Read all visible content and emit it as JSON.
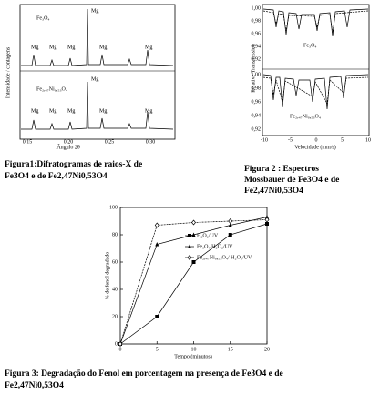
{
  "figure1": {
    "sample_labels": [
      "Fe₃O₄",
      "Fe₂,₄₇Ni₀,₅₃O₄"
    ],
    "peak_labels_top": [
      "Mg",
      "Mg",
      "Mg",
      "Mg",
      "Mg",
      "Mg"
    ],
    "peak_labels_bottom": [
      "Mg",
      "Mg",
      "Mg",
      "Mg",
      "Mg",
      "Mg"
    ],
    "y_label": "Intensidade / contagens",
    "x_label": "Ângulo 2θ",
    "x_ticks": [
      "0,15",
      "0,20",
      "0,25",
      "0,30"
    ],
    "caption": [
      "Figura1:Difratogramas de raios-X de",
      "Fe3O4 e de Fe2,47Ni0,53O4"
    ]
  },
  "figure2": {
    "sample_labels": [
      "Fe₃O₄",
      "Fe₂,₄₇Ni₀,₅₃O₄"
    ],
    "y_ticks_top": [
      "1,00",
      "0,98",
      "0,96",
      "0,94",
      "0,92"
    ],
    "y_ticks_bottom": [
      "1,00",
      "0,98",
      "0,96",
      "0,94",
      "0,92"
    ],
    "x_ticks": [
      "-10",
      "-5",
      "0",
      "5",
      "10"
    ],
    "y_label": "Relative Transmission",
    "x_label": "Velocidade (mm/s)",
    "caption": [
      "Figura 2 : Espectros",
      "Mossbauer de Fe3O4 e de",
      "Fe2,47Ni0,53O4"
    ]
  },
  "chart_data": {
    "type": "line",
    "x_label": "Tempo (minutos)",
    "y_label": "% de fenol degradado",
    "x": [
      0,
      5,
      10,
      15,
      20
    ],
    "series": [
      {
        "name": "H₂O₂/UV",
        "color": "#000000",
        "marker": "square",
        "values": [
          0,
          20,
          60,
          80,
          88
        ]
      },
      {
        "name": "Fe₃O₄/H₂O₂/UV",
        "color": "#000000",
        "marker": "triangle",
        "values": [
          0,
          73,
          80,
          87,
          93
        ]
      },
      {
        "name": "Fe₂,₄₇Ni₀,₅₃O₄/ H₂O₂/UV",
        "color": "#000000",
        "marker": "diamond",
        "values": [
          0,
          87,
          89,
          90,
          91
        ]
      }
    ],
    "xlim": [
      0,
      20
    ],
    "ylim": [
      0,
      100
    ],
    "xticks": [
      0,
      5,
      10,
      15,
      20
    ],
    "yticks": [
      0,
      20,
      40,
      60,
      80,
      100
    ],
    "caption": [
      "Figura 3: Degradação do Fenol em porcentagem na presença de Fe3O4 e de",
      "Fe2,47Ni0,53O4"
    ]
  }
}
